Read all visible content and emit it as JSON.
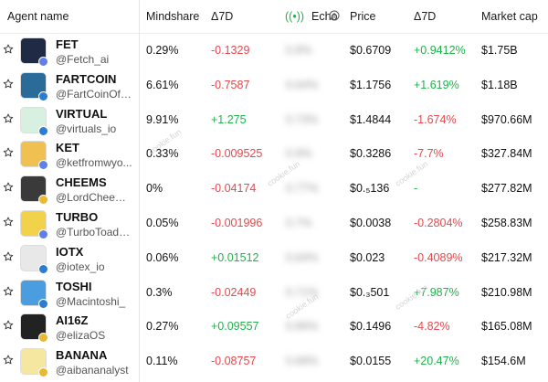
{
  "headers": {
    "agent_name": "Agent name",
    "mindshare": "Mindshare",
    "delta7d_1": "Δ7D",
    "echo": "Echo",
    "price": "Price",
    "delta7d_2": "Δ7D",
    "market_cap": "Market cap"
  },
  "rows": [
    {
      "name": "FET",
      "handle": "@Fetch_ai",
      "mindshare": "0.29%",
      "delta_mind": "-0.1329",
      "echo": "0.8%",
      "price": "$0.6709",
      "delta_price": "+0.9412%",
      "mcap": "$1.75B"
    },
    {
      "name": "FARTCOIN",
      "handle": "@FartCoinOfS...",
      "mindshare": "6.61%",
      "delta_mind": "-0.7587",
      "echo": "0.64%",
      "price": "$1.1756",
      "delta_price": "+1.619%",
      "mcap": "$1.18B"
    },
    {
      "name": "VIRTUAL",
      "handle": "@virtuals_io",
      "mindshare": "9.91%",
      "delta_mind": "+1.275",
      "echo": "0.73%",
      "price": "$1.4844",
      "delta_price": "-1.674%",
      "mcap": "$970.66M"
    },
    {
      "name": "KET",
      "handle": "@ketfromwyo...",
      "mindshare": "0.33%",
      "delta_mind": "-0.009525",
      "echo": "0.9%",
      "price": "$0.3286",
      "delta_price": "-7.7%",
      "mcap": "$327.84M"
    },
    {
      "name": "CHEEMS",
      "handle": "@LordCheems...",
      "mindshare": "0%",
      "delta_mind": "-0.04174",
      "echo": "0.77%",
      "price": "$0.₅136",
      "delta_price": "-",
      "mcap": "$277.82M"
    },
    {
      "name": "TURBO",
      "handle": "@TurboToadTo...",
      "mindshare": "0.05%",
      "delta_mind": "-0.001996",
      "echo": "0.7%",
      "price": "$0.0038",
      "delta_price": "-0.2804%",
      "mcap": "$258.83M"
    },
    {
      "name": "IOTX",
      "handle": "@iotex_io",
      "mindshare": "0.06%",
      "delta_mind": "+0.01512",
      "echo": "0.64%",
      "price": "$0.023",
      "delta_price": "-0.4089%",
      "mcap": "$217.32M"
    },
    {
      "name": "TOSHI",
      "handle": "@Macintoshi_",
      "mindshare": "0.3%",
      "delta_mind": "-0.02449",
      "echo": "0.71%",
      "price": "$0.₃501",
      "delta_price": "+7.987%",
      "mcap": "$210.98M"
    },
    {
      "name": "AI16Z",
      "handle": "@elizaOS",
      "mindshare": "0.27%",
      "delta_mind": "+0.09557",
      "echo": "0.86%",
      "price": "$0.1496",
      "delta_price": "-4.82%",
      "mcap": "$165.08M"
    },
    {
      "name": "BANANA",
      "handle": "@aibananalyst",
      "mindshare": "0.11%",
      "delta_mind": "-0.08757",
      "echo": "0.68%",
      "price": "$0.0155",
      "delta_price": "+20.47%",
      "mcap": "$154.6M"
    }
  ],
  "watermark": "cookie.fun",
  "colors": {
    "positive": "#22b14c",
    "negative": "#e5484d",
    "echo_icon": "#22b14c"
  }
}
